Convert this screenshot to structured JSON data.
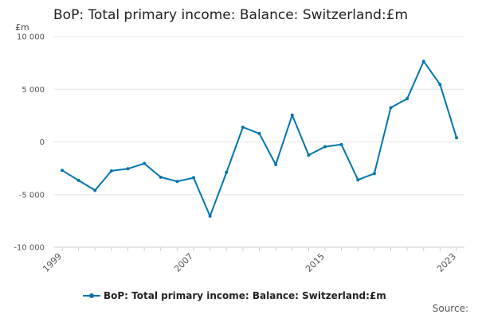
{
  "header": {
    "title": "BoP: Total primary income: Balance: Switzerland:£m"
  },
  "units_label": "£m",
  "source_label": "Source:",
  "chart_data": {
    "type": "line",
    "title": "BoP: Total primary income: Balance: Switzerland:£m",
    "ylabel": "£m",
    "xlabel": "",
    "ylim": [
      -10000,
      10000
    ],
    "yticks": [
      10000,
      5000,
      0,
      -5000,
      -10000
    ],
    "ytick_labels": [
      "10 000",
      "5 000",
      "0",
      "-5 000",
      "-10 000"
    ],
    "xticks": [
      1999,
      2007,
      2015,
      2023
    ],
    "xtick_labels": [
      "1999",
      "2007",
      "2015",
      "2023"
    ],
    "grid": true,
    "legend_position": "bottom",
    "color": "#0075b0",
    "series": [
      {
        "name": "BoP: Total primary income: Balance: Switzerland:£m",
        "x": [
          1999,
          2000,
          2001,
          2002,
          2003,
          2004,
          2005,
          2006,
          2007,
          2008,
          2009,
          2010,
          2011,
          2012,
          2013,
          2014,
          2015,
          2016,
          2017,
          2018,
          2019,
          2020,
          2021,
          2022,
          2023
        ],
        "values": [
          -2700,
          -3650,
          -4600,
          -2750,
          -2550,
          -2050,
          -3350,
          -3750,
          -3400,
          -7050,
          -2900,
          1400,
          800,
          -2150,
          2550,
          -1250,
          -450,
          -250,
          -3600,
          -3000,
          3250,
          4100,
          7650,
          5450,
          400
        ]
      }
    ]
  }
}
